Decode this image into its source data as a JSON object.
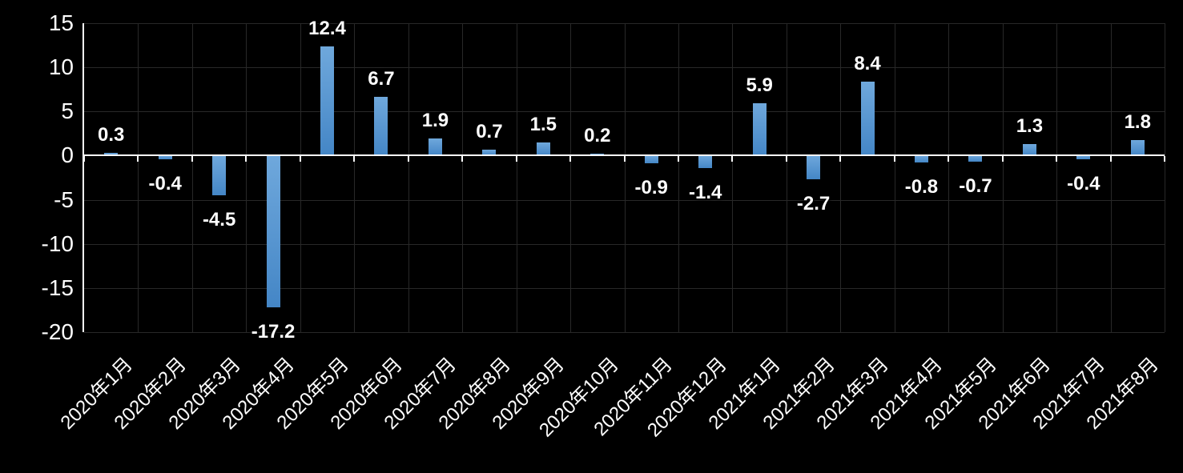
{
  "chart_data": {
    "type": "bar",
    "title": "",
    "xlabel": "",
    "ylabel": "",
    "categories": [
      "2020年1月",
      "2020年2月",
      "2020年3月",
      "2020年4月",
      "2020年5月",
      "2020年6月",
      "2020年7月",
      "2020年8月",
      "2020年9月",
      "2020年10月",
      "2020年11月",
      "2020年12月",
      "2021年1月",
      "2021年2月",
      "2021年3月",
      "2021年4月",
      "2021年5月",
      "2021年6月",
      "2021年7月",
      "2021年8月"
    ],
    "values": [
      0.3,
      -0.4,
      -4.5,
      -17.2,
      12.4,
      6.7,
      1.9,
      0.7,
      1.5,
      0.2,
      -0.9,
      -1.4,
      5.9,
      -2.7,
      8.4,
      -0.8,
      -0.7,
      1.3,
      -0.4,
      1.8
    ],
    "data_labels": [
      "0.3",
      "-0.4",
      "-4.5",
      "-17.2",
      "12.4",
      "6.7",
      "1.9",
      "0.7",
      "1.5",
      "0.2",
      "-0.9",
      "-1.4",
      "5.9",
      "-2.7",
      "8.4",
      "-0.8",
      "-0.7",
      "1.3",
      "-0.4",
      "1.8"
    ],
    "ylim": [
      -20,
      15
    ],
    "yticks": [
      15,
      10,
      5,
      0,
      -5,
      -10,
      -15,
      -20
    ],
    "ytick_labels": [
      "15",
      "10",
      "5",
      "0",
      "-5",
      "-10",
      "-15",
      "-20"
    ],
    "grid": true,
    "legend_position": "none",
    "colors": {
      "background": "#000000",
      "bar_gradient_top": "#6FA8DC",
      "bar_gradient_bottom": "#4486C6",
      "gridline": "#282828",
      "axis_line": "#FFFFFF",
      "text": "#FFFFFF"
    }
  }
}
